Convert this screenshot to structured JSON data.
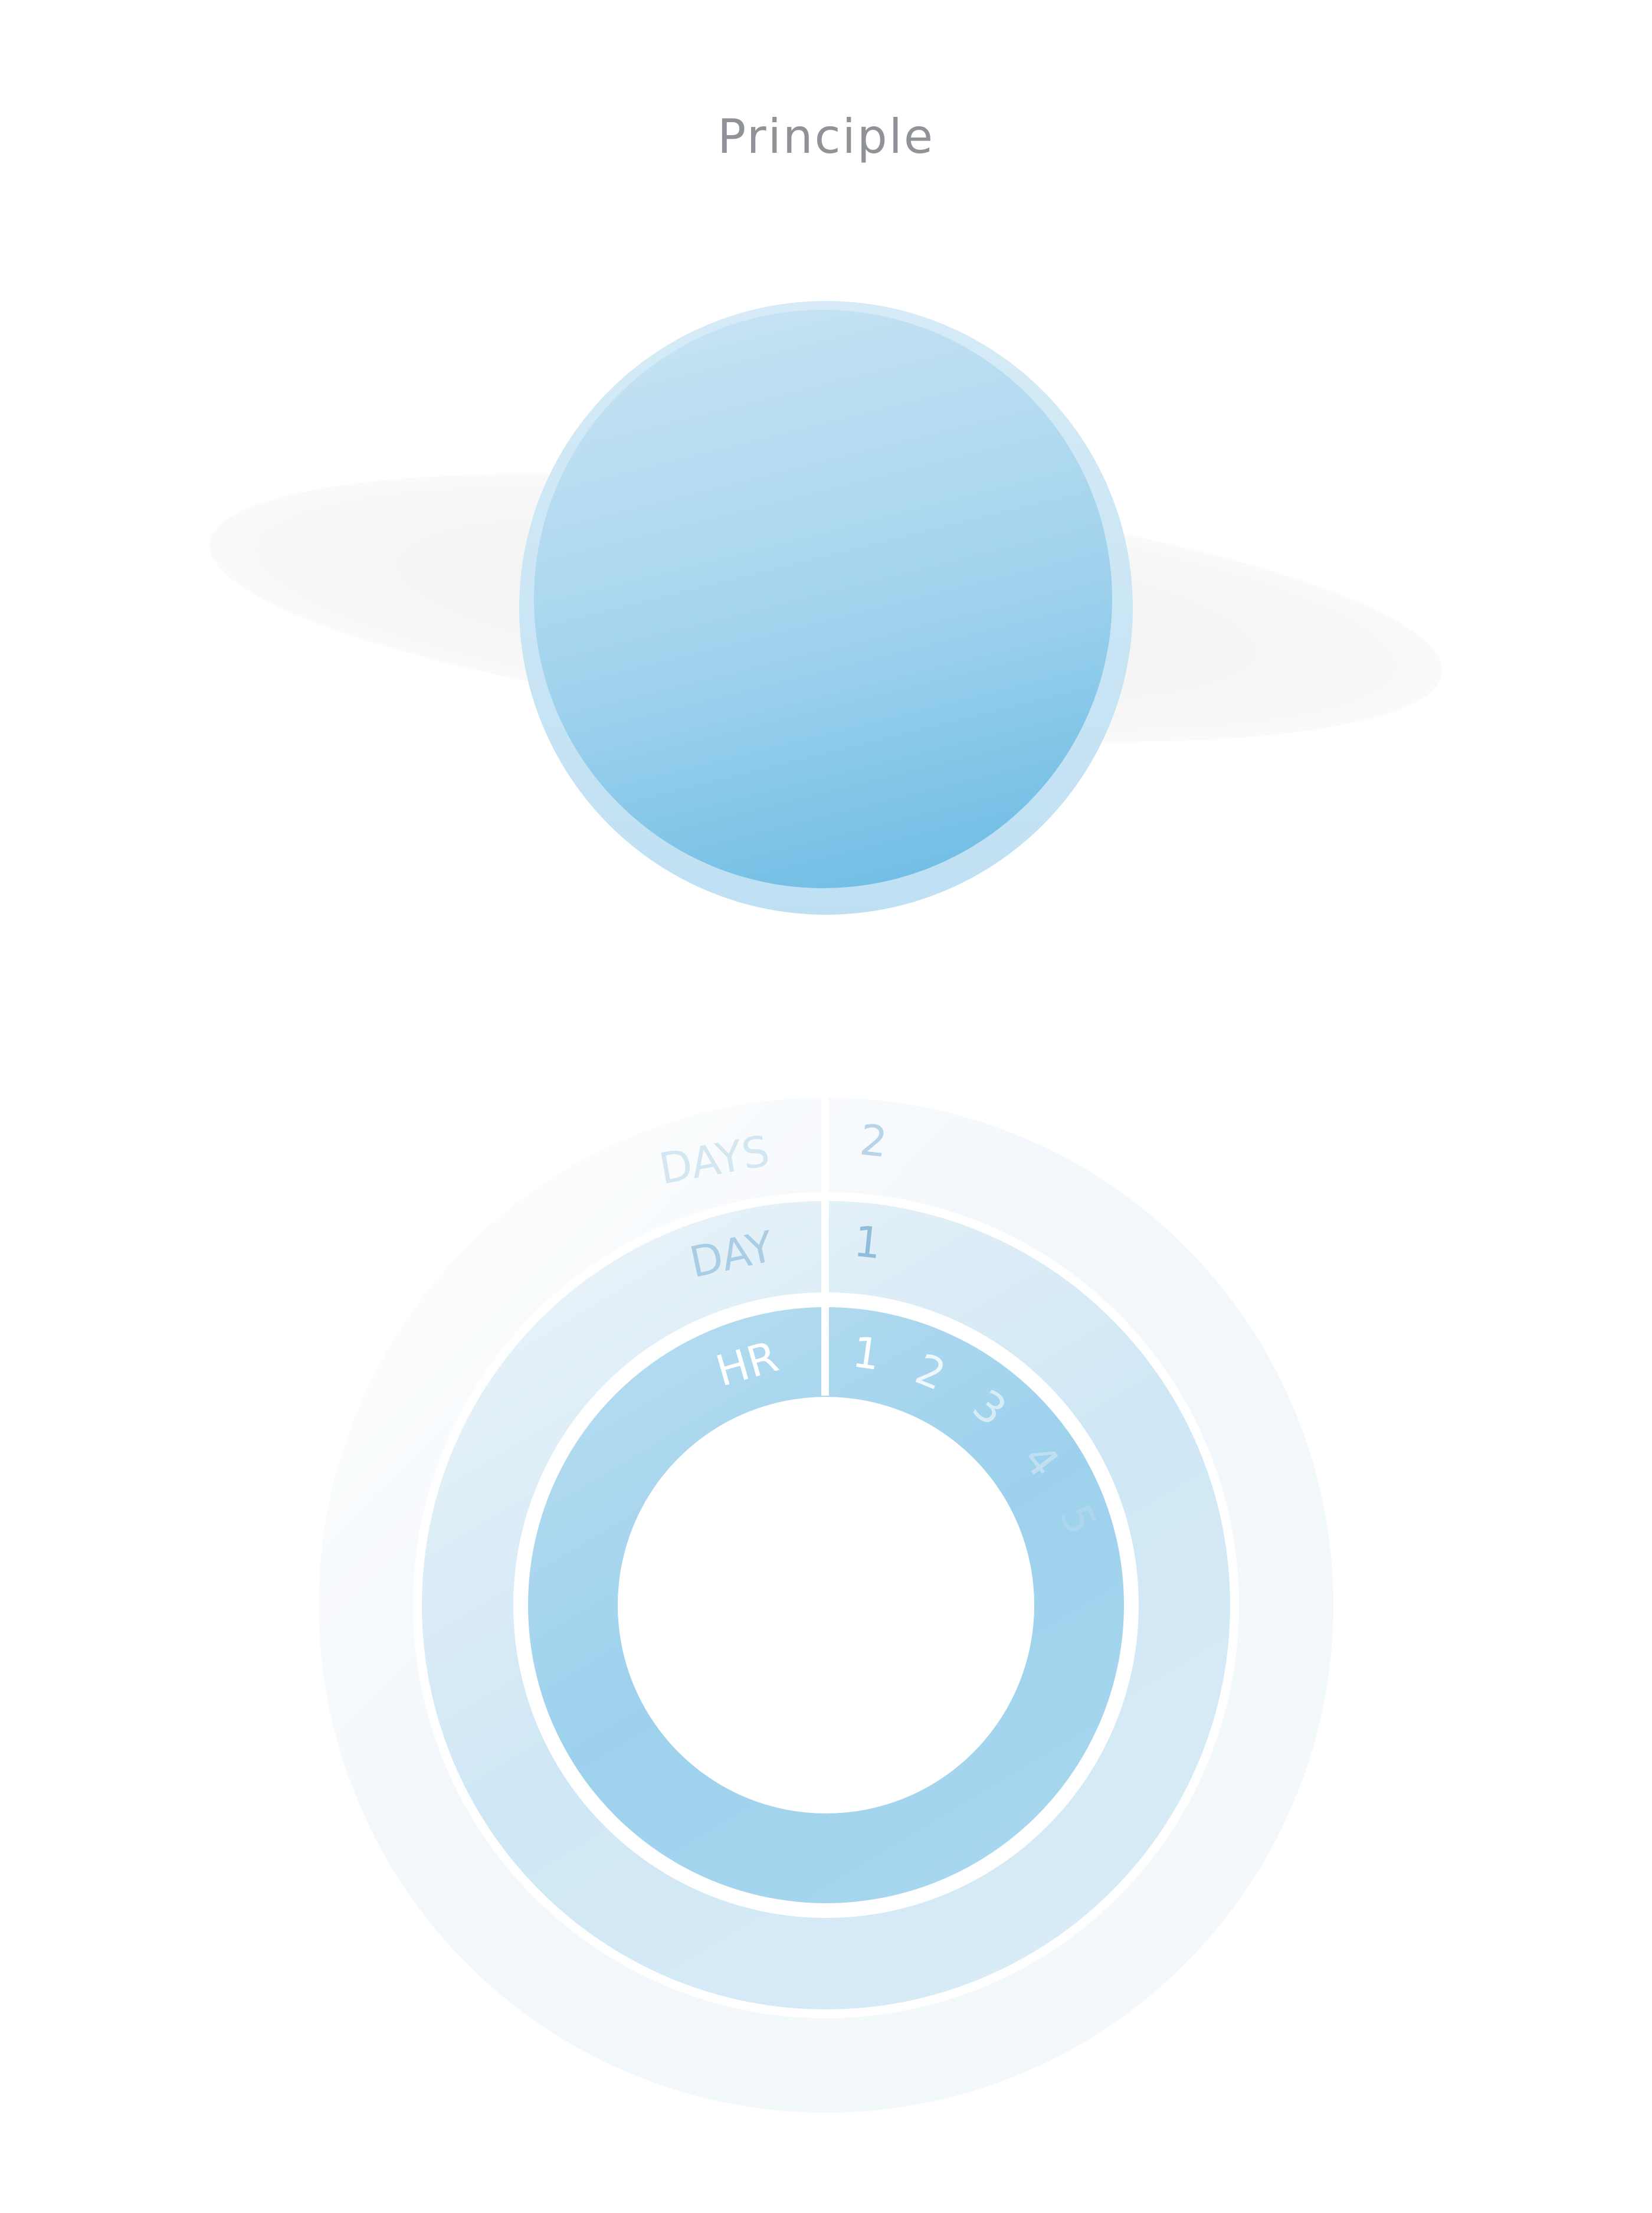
{
  "title": "Principle",
  "colors": {
    "background": "#ffffff",
    "title": "#8f9296",
    "sphere_light": "#c3e2f3",
    "sphere_dark": "#6fbde4",
    "ring_hours": "#9bcfec",
    "ring_day": "#c6e3f4",
    "ring_days": "#eaf3f9",
    "label_days": "#d3e6f1",
    "label_day": "#a9cde4",
    "label_hr": "#ffffff"
  },
  "rings": {
    "outer": {
      "unit_label": "DAYS",
      "marker": "2"
    },
    "middle": {
      "unit_label": "DAY",
      "marker": "1"
    },
    "inner": {
      "unit_label": "HR",
      "markers": [
        "1",
        "2",
        "3",
        "4",
        "5"
      ]
    }
  }
}
